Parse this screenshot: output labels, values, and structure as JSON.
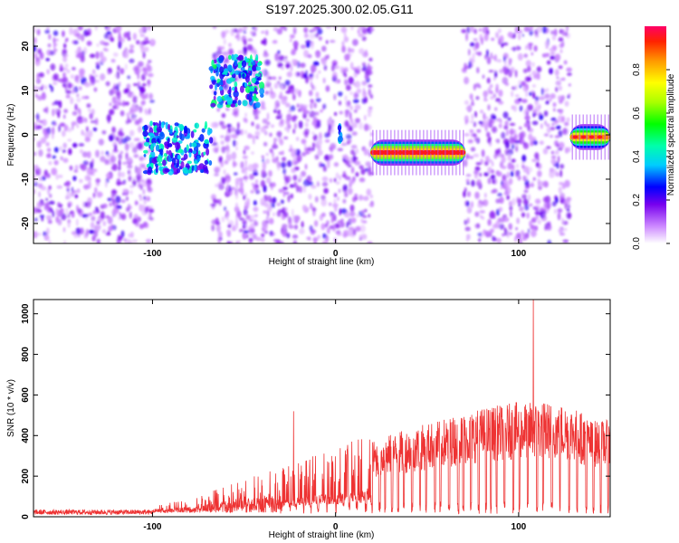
{
  "title": "S197.2025.300.02.05.G11",
  "chart_data": [
    {
      "type": "heatmap",
      "xlabel": "Height of straight line (km)",
      "ylabel": "Frequency (Hz)",
      "xlim": [
        -165,
        150
      ],
      "ylim": [
        -24.5,
        24.5
      ],
      "xticks": [
        -100,
        0,
        100
      ],
      "yticks": [
        -20,
        -10,
        0,
        10,
        20
      ],
      "colorbar": {
        "label": "Normalized spectral amplitude",
        "range": [
          0,
          1
        ],
        "ticks": [
          "0.0",
          "0.2",
          "0.4",
          "0.6",
          "0.8"
        ],
        "tick_values": [
          0,
          0.2,
          0.4,
          0.6,
          0.8
        ]
      },
      "noise_segments": [
        {
          "x": [
            -165,
            -100
          ]
        },
        {
          "x": [
            -67,
            -42
          ]
        },
        {
          "x": [
            -40,
            20
          ]
        },
        {
          "x": [
            70,
            128
          ]
        }
      ],
      "blank_segments": [
        {
          "x": [
            -100,
            -67
          ]
        },
        {
          "x": [
            20,
            70
          ]
        },
        {
          "x": [
            128,
            150
          ]
        }
      ],
      "signal_segments": [
        {
          "x": [
            -105,
            -68
          ],
          "freq": -3,
          "width": 8,
          "level": 0.3
        },
        {
          "x": [
            -68,
            -40
          ],
          "freq": 12,
          "width": 8,
          "level": 0.35
        },
        {
          "x": [
            2,
            3
          ],
          "freq": 0.5,
          "width": 4,
          "level": 0.25
        },
        {
          "x": [
            19,
            71
          ],
          "freq": -4,
          "width": 3,
          "level": 0.95
        },
        {
          "x": [
            128,
            150
          ],
          "freq": -0.5,
          "width": 3,
          "level": 0.85
        }
      ]
    },
    {
      "type": "line",
      "xlabel": "Height of straight line (km)",
      "ylabel": "SNR (10 * v/v)",
      "xlim": [
        -165,
        150
      ],
      "ylim": [
        0,
        1070
      ],
      "xticks": [
        -100,
        0,
        100
      ],
      "yticks": [
        0,
        200,
        400,
        600,
        800,
        1000
      ],
      "color": "#ee3333",
      "envelope": [
        [
          -165,
          30
        ],
        [
          -100,
          30
        ],
        [
          -80,
          70
        ],
        [
          -60,
          130
        ],
        [
          -40,
          200
        ],
        [
          -20,
          250
        ],
        [
          0,
          310
        ],
        [
          20,
          370
        ],
        [
          40,
          430
        ],
        [
          60,
          480
        ],
        [
          80,
          530
        ],
        [
          100,
          560
        ],
        [
          120,
          560
        ],
        [
          130,
          540
        ],
        [
          140,
          470
        ],
        [
          150,
          470
        ]
      ],
      "spikes": [
        {
          "x": -23,
          "y": 520
        },
        {
          "x": 108,
          "y": 1070
        }
      ]
    }
  ]
}
